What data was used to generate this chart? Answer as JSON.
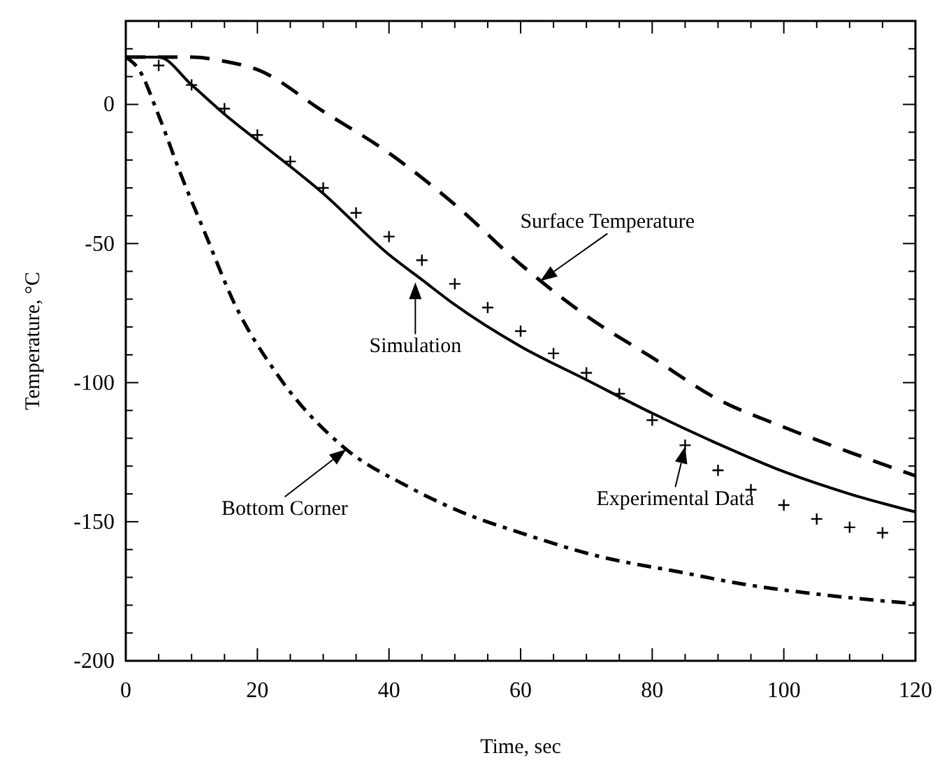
{
  "chart_data": {
    "type": "line",
    "xlabel": "Time, sec",
    "ylabel": "Temperature, °C",
    "xlim": [
      0,
      120
    ],
    "ylim": [
      -200,
      30
    ],
    "xticks": [
      0,
      {
        "value": 5,
        "label": null
      },
      {
        "value": 10,
        "label": null
      },
      {
        "value": 15,
        "label": null
      },
      20,
      {
        "value": 25,
        "label": null
      },
      {
        "value": 30,
        "label": null
      },
      {
        "value": 35,
        "label": null
      },
      40,
      {
        "value": 45,
        "label": null
      },
      {
        "value": 50,
        "label": null
      },
      {
        "value": 55,
        "label": null
      },
      60,
      {
        "value": 65,
        "label": null
      },
      {
        "value": 70,
        "label": null
      },
      {
        "value": 75,
        "label": null
      },
      80,
      {
        "value": 85,
        "label": null
      },
      {
        "value": 90,
        "label": null
      },
      {
        "value": 95,
        "label": null
      },
      100,
      {
        "value": 105,
        "label": null
      },
      {
        "value": 110,
        "label": null
      },
      {
        "value": 115,
        "label": null
      },
      120
    ],
    "yticks": [
      -200,
      {
        "value": -190,
        "label": null
      },
      {
        "value": -180,
        "label": null
      },
      {
        "value": -170,
        "label": null
      },
      {
        "value": -160,
        "label": null
      },
      -150,
      {
        "value": -140,
        "label": null
      },
      {
        "value": -130,
        "label": null
      },
      {
        "value": -120,
        "label": null
      },
      {
        "value": -110,
        "label": null
      },
      -100,
      {
        "value": -90,
        "label": null
      },
      {
        "value": -80,
        "label": null
      },
      {
        "value": -70,
        "label": null
      },
      {
        "value": -60,
        "label": null
      },
      -50,
      {
        "value": -40,
        "label": null
      },
      {
        "value": -30,
        "label": null
      },
      {
        "value": -20,
        "label": null
      },
      {
        "value": -10,
        "label": null
      },
      0,
      {
        "value": 10,
        "label": null
      },
      {
        "value": 20,
        "label": null
      }
    ],
    "grid": false,
    "series": [
      {
        "color": "#000000",
        "line_style": "solid",
        "x": [
          0,
          5,
          10,
          15,
          20,
          30,
          40,
          45,
          50,
          60,
          70,
          80,
          90,
          100,
          110,
          120
        ],
        "values": [
          17,
          17,
          7,
          -3.5,
          -13,
          -32,
          -54,
          -63,
          -72,
          -87,
          -99,
          -111,
          -122,
          -132,
          -140,
          -146.5
        ]
      },
      {
        "color": "#000000",
        "line_style": "dashed",
        "x": [
          0,
          5,
          10,
          15,
          20,
          30,
          40,
          50,
          60,
          70,
          80,
          90,
          100,
          110,
          120
        ],
        "values": [
          17,
          17,
          17,
          15.5,
          12.5,
          -2.5,
          -17.5,
          -36,
          -57.5,
          -76,
          -91,
          -106,
          -116,
          -125,
          -133.5
        ]
      },
      {
        "color": "#000000",
        "line_style": "dashdot",
        "x": [
          0,
          2,
          5,
          8.5,
          12,
          16.4,
          23,
          33,
          43,
          51,
          60,
          72,
          84,
          94,
          105,
          120
        ],
        "values": [
          17,
          12.5,
          -4,
          -26,
          -46,
          -71,
          -97,
          -123,
          -137.5,
          -146.5,
          -154,
          -162.5,
          -168,
          -172.5,
          -176,
          -179.5
        ]
      },
      {
        "type": "scatter",
        "color": "#000000",
        "marker": "cross",
        "x": [
          5,
          10,
          15,
          20,
          25,
          30,
          35,
          40,
          45,
          50,
          55,
          60,
          65,
          70,
          75,
          80,
          85,
          90,
          95,
          100,
          105,
          110,
          115
        ],
        "values": [
          14,
          7,
          -1.5,
          -11,
          -20.5,
          -30,
          -39,
          -47.5,
          -56,
          -64.5,
          -73,
          -81.5,
          -89.5,
          -96.5,
          -104,
          -113.5,
          -122.5,
          -131.5,
          -138.5,
          -144,
          -149,
          -152,
          -154
        ]
      }
    ],
    "annotations": [
      {
        "text": "Surface Temperature",
        "x": 63,
        "y": -63.5
      },
      {
        "text": "Simulation",
        "x": 44,
        "y": -64
      },
      {
        "text": "Experimental Data",
        "x": 85,
        "y": -123
      },
      {
        "text": "Bottom Corner",
        "x": 33.5,
        "y": -124
      }
    ]
  }
}
